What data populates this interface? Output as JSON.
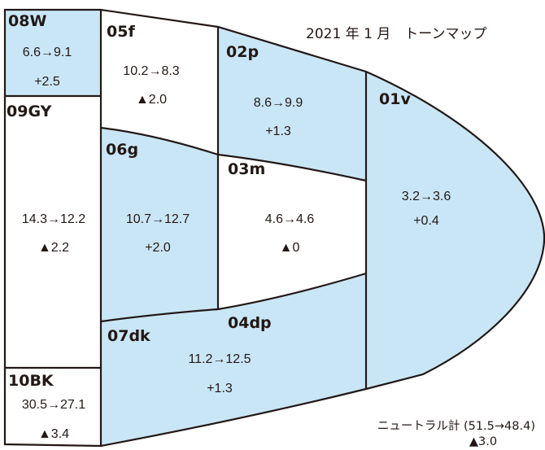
{
  "title": "2021 年 1 月　トーンマップ",
  "colors": {
    "fill": "#c9e6f6",
    "line": "#231815",
    "blank": "#ffffff"
  },
  "regions": {
    "r08w": {
      "code": "08W",
      "range": "6.6→9.1",
      "delta": "+2.5",
      "filled": true
    },
    "r05f": {
      "code": "05f",
      "range": "10.2→8.3",
      "delta": "▲2.0",
      "filled": false
    },
    "r02p": {
      "code": "02p",
      "range": "8.6→9.9",
      "delta": "+1.3",
      "filled": true
    },
    "r01v": {
      "code": "01v",
      "range": "3.2→3.6",
      "delta": "+0.4",
      "filled": true
    },
    "r09gy": {
      "code": "09GY",
      "range": "14.3→12.2",
      "delta": "▲2.2",
      "filled": false
    },
    "r06g": {
      "code": "06g",
      "range": "10.7→12.7",
      "delta": "+2.0",
      "filled": true
    },
    "r03m": {
      "code": "03m",
      "range": "4.6→4.6",
      "delta": "▲0",
      "filled": false
    },
    "r04dp": {
      "code": "04dp",
      "range": "",
      "delta": "",
      "filled": true
    },
    "r07dk": {
      "code": "07dk",
      "range": "11.2→12.5",
      "delta": "+1.3",
      "filled": true
    },
    "r10bk": {
      "code": "10BK",
      "range": "30.5→27.1",
      "delta": "▲3.4",
      "filled": false
    }
  },
  "neutral": {
    "label": "ニュートラル計 (51.5→48.4)",
    "delta": "▲3.0"
  }
}
